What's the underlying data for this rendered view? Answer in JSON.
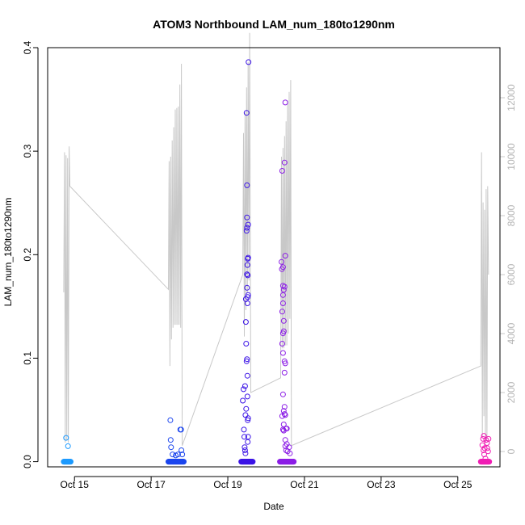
{
  "chart_data": {
    "type": "scatter",
    "title": "ATOM3 Northbound LAM_num_180to1290nm",
    "xlabel": "Date",
    "ylabel": "LAM_num_180to1290nm",
    "x_axis": {
      "unit": "days (October)",
      "range": [
        14.3,
        26.1
      ],
      "ticks": [
        15,
        17,
        19,
        21,
        23,
        25
      ],
      "tick_labels": [
        "Oct 15",
        "Oct 17",
        "Oct 19",
        "Oct 21",
        "Oct 23",
        "Oct 25"
      ]
    },
    "y_left": {
      "range": [
        -0.005,
        0.4
      ],
      "ticks": [
        0.0,
        0.1,
        0.2,
        0.3,
        0.4
      ],
      "tick_labels": [
        "0.0",
        "0.1",
        "0.2",
        "0.3",
        "0.4"
      ]
    },
    "y_right": {
      "range": [
        0,
        12000
      ],
      "ticks": [
        0,
        2000,
        4000,
        6000,
        8000,
        10000,
        12000
      ],
      "tick_labels": [
        "0",
        "2000",
        "4000",
        "6000",
        "8000",
        "10000",
        "12000"
      ],
      "color": "#c8c8c8"
    },
    "grid": false,
    "background_line": {
      "color": "#c8c8c8",
      "axis": "right",
      "points": [
        [
          14.72,
          5400
        ],
        [
          14.74,
          10150
        ],
        [
          14.76,
          300
        ],
        [
          14.78,
          10050
        ],
        [
          14.8,
          400
        ],
        [
          14.82,
          9950
        ],
        [
          14.84,
          300
        ],
        [
          14.86,
          10350
        ],
        [
          14.88,
          9000
        ],
        [
          17.45,
          5500
        ],
        [
          17.47,
          9850
        ],
        [
          17.49,
          2900
        ],
        [
          17.51,
          10000
        ],
        [
          17.53,
          3800
        ],
        [
          17.55,
          10550
        ],
        [
          17.57,
          4200
        ],
        [
          17.59,
          11000
        ],
        [
          17.61,
          4300
        ],
        [
          17.63,
          11600
        ],
        [
          17.65,
          4300
        ],
        [
          17.67,
          11650
        ],
        [
          17.69,
          4300
        ],
        [
          17.71,
          11700
        ],
        [
          17.73,
          4300
        ],
        [
          17.75,
          12450
        ],
        [
          17.77,
          4200
        ],
        [
          17.79,
          13150
        ],
        [
          17.81,
          200
        ],
        [
          19.39,
          6000
        ],
        [
          19.41,
          10800
        ],
        [
          19.43,
          3900
        ],
        [
          19.45,
          11500
        ],
        [
          19.47,
          4800
        ],
        [
          19.49,
          12350
        ],
        [
          19.51,
          5400
        ],
        [
          19.53,
          13200
        ],
        [
          19.55,
          5800
        ],
        [
          19.57,
          14200
        ],
        [
          19.6,
          2000
        ],
        [
          20.38,
          2500
        ],
        [
          20.4,
          10000
        ],
        [
          20.42,
          3500
        ],
        [
          20.44,
          10300
        ],
        [
          20.46,
          3500
        ],
        [
          20.48,
          10700
        ],
        [
          20.5,
          3600
        ],
        [
          20.52,
          11200
        ],
        [
          20.54,
          3600
        ],
        [
          20.56,
          11900
        ],
        [
          20.58,
          4000
        ],
        [
          20.6,
          12200
        ],
        [
          20.62,
          4500
        ],
        [
          20.64,
          12600
        ],
        [
          20.66,
          200
        ],
        [
          25.6,
          2900
        ],
        [
          25.62,
          10150
        ],
        [
          25.64,
          500
        ],
        [
          25.66,
          8450
        ],
        [
          25.68,
          1200
        ],
        [
          25.7,
          8200
        ],
        [
          25.72,
          300
        ],
        [
          25.74,
          8900
        ],
        [
          25.76,
          400
        ],
        [
          25.78,
          9000
        ],
        [
          25.8,
          6000
        ]
      ]
    },
    "point_style": "open-circle",
    "series": [
      {
        "color": "#1e9bff",
        "x_range": [
          14.72,
          14.9
        ],
        "baseline_count": 25,
        "points": [
          [
            14.78,
            0.023
          ],
          [
            14.83,
            0.015
          ]
        ]
      },
      {
        "color": "#1c46ee",
        "x_range": [
          17.45,
          17.85
        ],
        "baseline_count": 45,
        "points": [
          [
            17.5,
            0.04
          ],
          [
            17.51,
            0.021
          ],
          [
            17.52,
            0.014
          ],
          [
            17.56,
            0.007
          ],
          [
            17.64,
            0.006
          ],
          [
            17.7,
            0.007
          ],
          [
            17.76,
            0.031
          ],
          [
            17.78,
            0.031
          ],
          [
            17.79,
            0.011
          ],
          [
            17.81,
            0.007
          ]
        ]
      },
      {
        "color": "#3c14e6",
        "x_range": [
          19.35,
          19.65
        ],
        "baseline_count": 40,
        "points": [
          [
            19.39,
            0.059
          ],
          [
            19.41,
            0.07
          ],
          [
            19.42,
            0.031
          ],
          [
            19.43,
            0.024
          ],
          [
            19.44,
            0.014
          ],
          [
            19.45,
            0.073
          ],
          [
            19.45,
            0.011
          ],
          [
            19.46,
            0.045
          ],
          [
            19.46,
            0.008
          ],
          [
            19.47,
            0.157
          ],
          [
            19.47,
            0.135
          ],
          [
            19.48,
            0.114
          ],
          [
            19.48,
            0.051
          ],
          [
            19.49,
            0.097
          ],
          [
            19.49,
            0.223
          ],
          [
            19.49,
            0.337
          ],
          [
            19.5,
            0.267
          ],
          [
            19.5,
            0.236
          ],
          [
            19.5,
            0.226
          ],
          [
            19.5,
            0.181
          ],
          [
            19.5,
            0.168
          ],
          [
            19.5,
            0.099
          ],
          [
            19.51,
            0.19
          ],
          [
            19.51,
            0.153
          ],
          [
            19.51,
            0.083
          ],
          [
            19.51,
            0.063
          ],
          [
            19.52,
            0.196
          ],
          [
            19.52,
            0.18
          ],
          [
            19.52,
            0.159
          ],
          [
            19.52,
            0.04
          ],
          [
            19.52,
            0.019
          ],
          [
            19.53,
            0.197
          ],
          [
            19.53,
            0.229
          ],
          [
            19.53,
            0.161
          ],
          [
            19.53,
            0.042
          ],
          [
            19.53,
            0.024
          ],
          [
            19.54,
            0.386
          ]
        ]
      },
      {
        "color": "#8c1ee6",
        "x_range": [
          20.36,
          20.72
        ],
        "baseline_count": 50,
        "points": [
          [
            20.4,
            0.193
          ],
          [
            20.41,
            0.186
          ],
          [
            20.42,
            0.281
          ],
          [
            20.42,
            0.145
          ],
          [
            20.42,
            0.114
          ],
          [
            20.42,
            0.044
          ],
          [
            20.44,
            0.188
          ],
          [
            20.44,
            0.17
          ],
          [
            20.44,
            0.161
          ],
          [
            20.44,
            0.153
          ],
          [
            20.44,
            0.124
          ],
          [
            20.44,
            0.105
          ],
          [
            20.44,
            0.065
          ],
          [
            20.44,
            0.031
          ],
          [
            20.46,
            0.166
          ],
          [
            20.46,
            0.136
          ],
          [
            20.46,
            0.126
          ],
          [
            20.46,
            0.049
          ],
          [
            20.46,
            0.036
          ],
          [
            20.46,
            0.03
          ],
          [
            20.48,
            0.289
          ],
          [
            20.48,
            0.169
          ],
          [
            20.48,
            0.097
          ],
          [
            20.48,
            0.086
          ],
          [
            20.48,
            0.053
          ],
          [
            20.48,
            0.046
          ],
          [
            20.5,
            0.347
          ],
          [
            20.5,
            0.199
          ],
          [
            20.5,
            0.095
          ],
          [
            20.5,
            0.045
          ],
          [
            20.5,
            0.021
          ],
          [
            20.5,
            0.015
          ],
          [
            20.52,
            0.032
          ],
          [
            20.52,
            0.011
          ],
          [
            20.54,
            0.032
          ],
          [
            20.54,
            0.017
          ],
          [
            20.56,
            0.01
          ],
          [
            20.6,
            0.014
          ],
          [
            20.62,
            0.008
          ]
        ]
      },
      {
        "color": "#f01eb4",
        "x_range": [
          25.6,
          25.82
        ],
        "baseline_count": 30,
        "points": [
          [
            25.64,
            0.016
          ],
          [
            25.66,
            0.022
          ],
          [
            25.67,
            0.011
          ],
          [
            25.68,
            0.025
          ],
          [
            25.69,
            0.007
          ],
          [
            25.7,
            0.013
          ],
          [
            25.72,
            0.003
          ],
          [
            25.74,
            0.021
          ],
          [
            25.76,
            0.018
          ],
          [
            25.77,
            0.013
          ],
          [
            25.79,
            0.01
          ],
          [
            25.8,
            0.022
          ]
        ]
      }
    ]
  }
}
